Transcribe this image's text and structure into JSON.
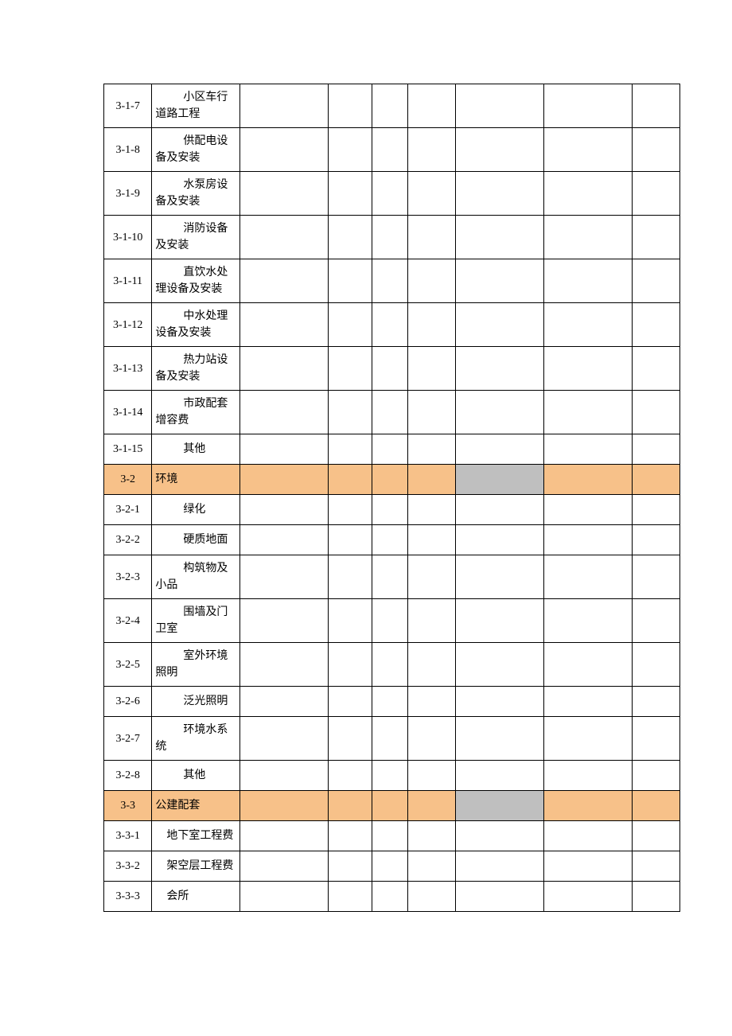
{
  "colors": {
    "orange": "#f7c189",
    "gray": "#bfbfbf",
    "border": "#000000",
    "background": "#ffffff",
    "text": "#000000"
  },
  "columns": {
    "code_width": 60,
    "label_width": 110,
    "c3_width": 110,
    "c4_width": 55,
    "c5_width": 45,
    "c6_width": 60,
    "c7_width": 110,
    "c8_width": 110,
    "c9_width": 60
  },
  "rows": [
    {
      "code": "3-1-7",
      "label": "小区车行道路工程",
      "indent": 2,
      "highlight": false,
      "gray7": false
    },
    {
      "code": "3-1-8",
      "label": "供配电设备及安装",
      "indent": 2,
      "highlight": false,
      "gray7": false
    },
    {
      "code": "3-1-9",
      "label": "水泵房设备及安装",
      "indent": 2,
      "highlight": false,
      "gray7": false
    },
    {
      "code": "3-1-10",
      "label": "消防设备及安装",
      "indent": 2,
      "highlight": false,
      "gray7": false
    },
    {
      "code": "3-1-11",
      "label": "直饮水处理设备及安装",
      "indent": 2,
      "highlight": false,
      "gray7": false
    },
    {
      "code": "3-1-12",
      "label": "中水处理设备及安装",
      "indent": 2,
      "highlight": false,
      "gray7": false
    },
    {
      "code": "3-1-13",
      "label": "热力站设备及安装",
      "indent": 2,
      "highlight": false,
      "gray7": false
    },
    {
      "code": "3-1-14",
      "label": "市政配套增容费",
      "indent": 2,
      "highlight": false,
      "gray7": false
    },
    {
      "code": "3-1-15",
      "label": "其他",
      "indent": 2,
      "highlight": false,
      "gray7": false
    },
    {
      "code": "3-2",
      "label": "环境",
      "indent": 0,
      "highlight": true,
      "gray7": true
    },
    {
      "code": "3-2-1",
      "label": "绿化",
      "indent": 2,
      "highlight": false,
      "gray7": false
    },
    {
      "code": "3-2-2",
      "label": "硬质地面",
      "indent": 2,
      "highlight": false,
      "gray7": false
    },
    {
      "code": "3-2-3",
      "label": "构筑物及小品",
      "indent": 2,
      "highlight": false,
      "gray7": false
    },
    {
      "code": "3-2-4",
      "label": "围墙及门卫室",
      "indent": 2,
      "highlight": false,
      "gray7": false
    },
    {
      "code": "3-2-5",
      "label": "室外环境照明",
      "indent": 2,
      "highlight": false,
      "gray7": false
    },
    {
      "code": "3-2-6",
      "label": "泛光照明",
      "indent": 2,
      "highlight": false,
      "gray7": false
    },
    {
      "code": "3-2-7",
      "label": "环境水系统",
      "indent": 2,
      "highlight": false,
      "gray7": false
    },
    {
      "code": "3-2-8",
      "label": "其他",
      "indent": 2,
      "highlight": false,
      "gray7": false
    },
    {
      "code": "3-3",
      "label": "公建配套",
      "indent": 0,
      "highlight": true,
      "gray7": true
    },
    {
      "code": "3-3-1",
      "label": "地下室工程费",
      "indent": 1,
      "highlight": false,
      "gray7": false
    },
    {
      "code": "3-3-2",
      "label": "架空层工程费",
      "indent": 1,
      "highlight": false,
      "gray7": false
    },
    {
      "code": "3-3-3",
      "label": "会所",
      "indent": 1,
      "highlight": false,
      "gray7": false
    }
  ]
}
